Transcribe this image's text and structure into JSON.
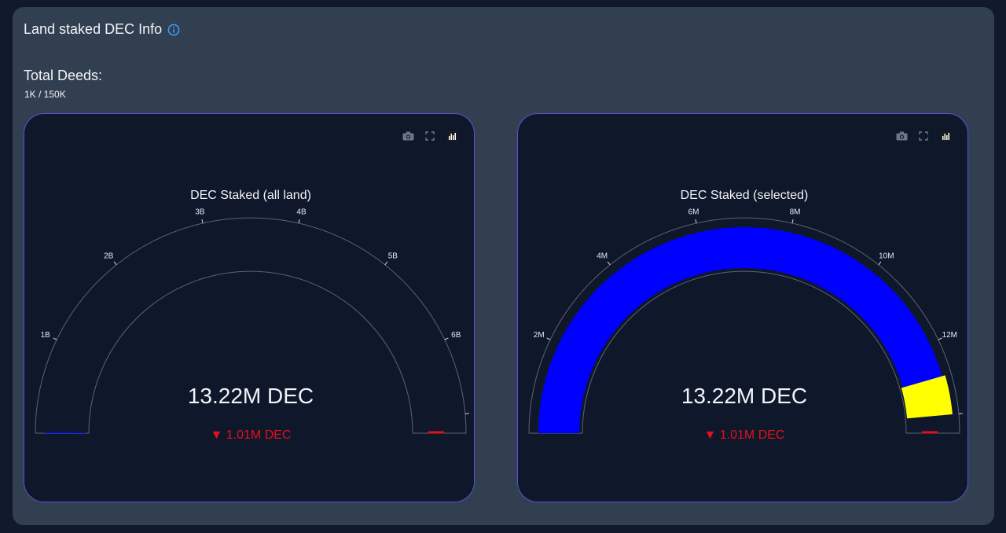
{
  "section": {
    "title": "Land staked DEC Info"
  },
  "deeds": {
    "label": "Total Deeds:",
    "value": "1K / 150K"
  },
  "colors": {
    "bar": "#0000ff",
    "threshold": "#ffff00",
    "delta_negative": "#e3111b",
    "axis": "#5b6374",
    "tick_text": "#e6e9ef",
    "card_border": "#5b4fd8"
  },
  "toolbar_icons": [
    "camera-icon",
    "fullscreen-icon",
    "plotly-logo-icon"
  ],
  "gauges": [
    {
      "title": "DEC Staked (all land)",
      "value_text": "13.22M DEC",
      "delta_text": "▼ 1.01M DEC",
      "ticks": [
        "1B",
        "2B",
        "3B",
        "4B",
        "5B",
        "6B"
      ]
    },
    {
      "title": "DEC Staked (selected)",
      "value_text": "13.22M DEC",
      "delta_text": "▼ 1.01M DEC",
      "ticks": [
        "2M",
        "4M",
        "6M",
        "8M",
        "10M",
        "12M"
      ]
    }
  ],
  "chart_data": [
    {
      "type": "gauge",
      "title": "DEC Staked (all land)",
      "value": 13220000,
      "value_label": "13.22M DEC",
      "delta": -1010000,
      "delta_label": "▼ 1.01M DEC",
      "axis_range": [
        0,
        7000000000
      ],
      "tick_values": [
        1000000000,
        2000000000,
        3000000000,
        4000000000,
        5000000000,
        6000000000
      ],
      "tick_labels": [
        "1B",
        "2B",
        "3B",
        "4B",
        "5B",
        "6B"
      ],
      "threshold": 7000000000
    },
    {
      "type": "gauge",
      "title": "DEC Staked (selected)",
      "value": 13220000,
      "value_label": "13.22M DEC",
      "delta": -1010000,
      "delta_label": "▼ 1.01M DEC",
      "axis_range": [
        0,
        14000000
      ],
      "tick_values": [
        2000000,
        4000000,
        6000000,
        8000000,
        10000000,
        12000000
      ],
      "tick_labels": [
        "2M",
        "4M",
        "6M",
        "8M",
        "10M",
        "12M"
      ],
      "threshold": 13330000
    }
  ]
}
